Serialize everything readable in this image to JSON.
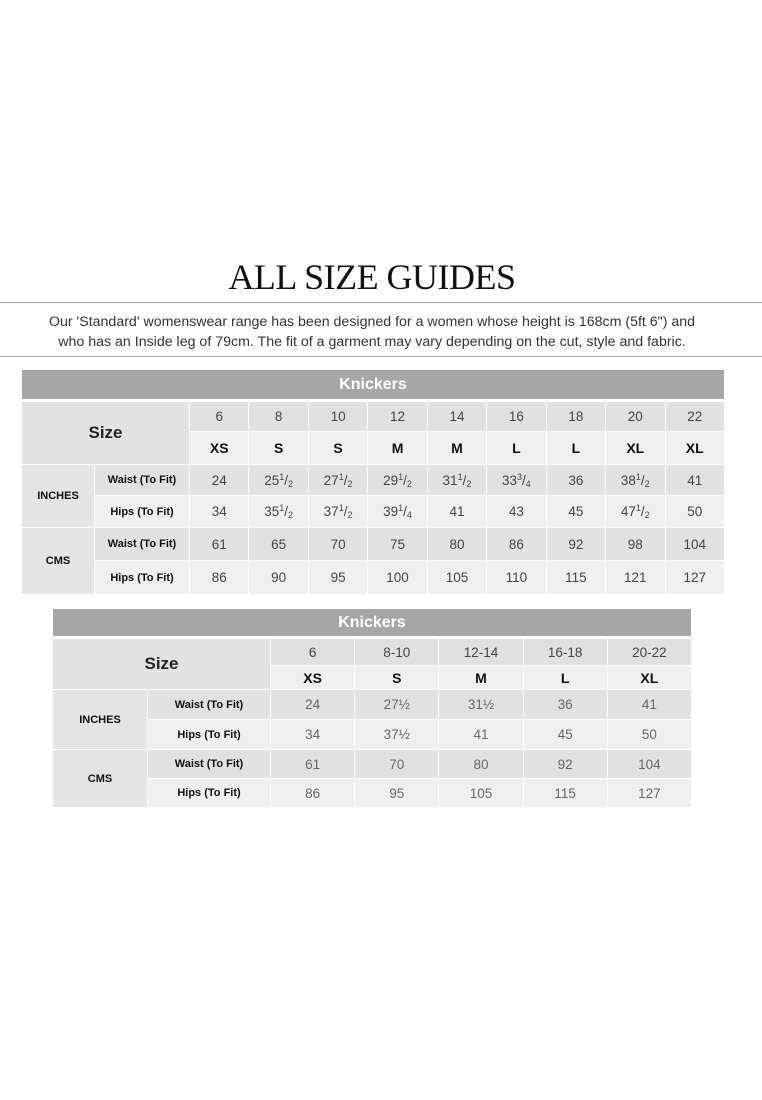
{
  "page": {
    "title": "ALL SIZE GUIDES",
    "intro_line1": "Our 'Standard' womenswear range has been designed for a women whose height is 168cm (5ft 6\") and",
    "intro_line2": "who has an Inside leg of 79cm. The fit of a garment may vary depending on the cut, style and fabric."
  },
  "tables": [
    {
      "title": "Knickers",
      "size_label": "Size",
      "sizes": [
        "6",
        "8",
        "10",
        "12",
        "14",
        "16",
        "18",
        "20",
        "22"
      ],
      "letters": [
        "XS",
        "S",
        "S",
        "M",
        "M",
        "L",
        "L",
        "XL",
        "XL"
      ],
      "groups": [
        {
          "name": "INCHES",
          "rows": [
            {
              "label": "Waist (To Fit)",
              "values": [
                "24",
                "25 1/2",
                "27 1/2",
                "29 1/2",
                "31 1/2",
                "33 3/4",
                "36",
                "38 1/2",
                "41"
              ]
            },
            {
              "label": "Hips (To Fit)",
              "values": [
                "34",
                "35 1/2",
                "37 1/2",
                "39 1/4",
                "41",
                "43",
                "45",
                "47 1/2",
                "50"
              ]
            }
          ]
        },
        {
          "name": "CMS",
          "rows": [
            {
              "label": "Waist (To Fit)",
              "values": [
                "61",
                "65",
                "70",
                "75",
                "80",
                "86",
                "92",
                "98",
                "104"
              ]
            },
            {
              "label": "Hips (To Fit)",
              "values": [
                "86",
                "90",
                "95",
                "100",
                "105",
                "110",
                "115",
                "121",
                "127"
              ]
            }
          ]
        }
      ]
    },
    {
      "title": "Knickers",
      "size_label": "Size",
      "sizes": [
        "6",
        "8-10",
        "12-14",
        "16-18",
        "20-22"
      ],
      "letters": [
        "XS",
        "S",
        "M",
        "L",
        "XL"
      ],
      "groups": [
        {
          "name": "INCHES",
          "rows": [
            {
              "label": "Waist (To Fit)",
              "values": [
                "24",
                "27½",
                "31½",
                "36",
                "41"
              ]
            },
            {
              "label": "Hips (To Fit)",
              "values": [
                "34",
                "37½",
                "41",
                "45",
                "50"
              ]
            }
          ]
        },
        {
          "name": "CMS",
          "rows": [
            {
              "label": "Waist (To Fit)",
              "values": [
                "61",
                "70",
                "80",
                "92",
                "104"
              ]
            },
            {
              "label": "Hips (To Fit)",
              "values": [
                "86",
                "95",
                "105",
                "115",
                "127"
              ]
            }
          ]
        }
      ]
    }
  ]
}
